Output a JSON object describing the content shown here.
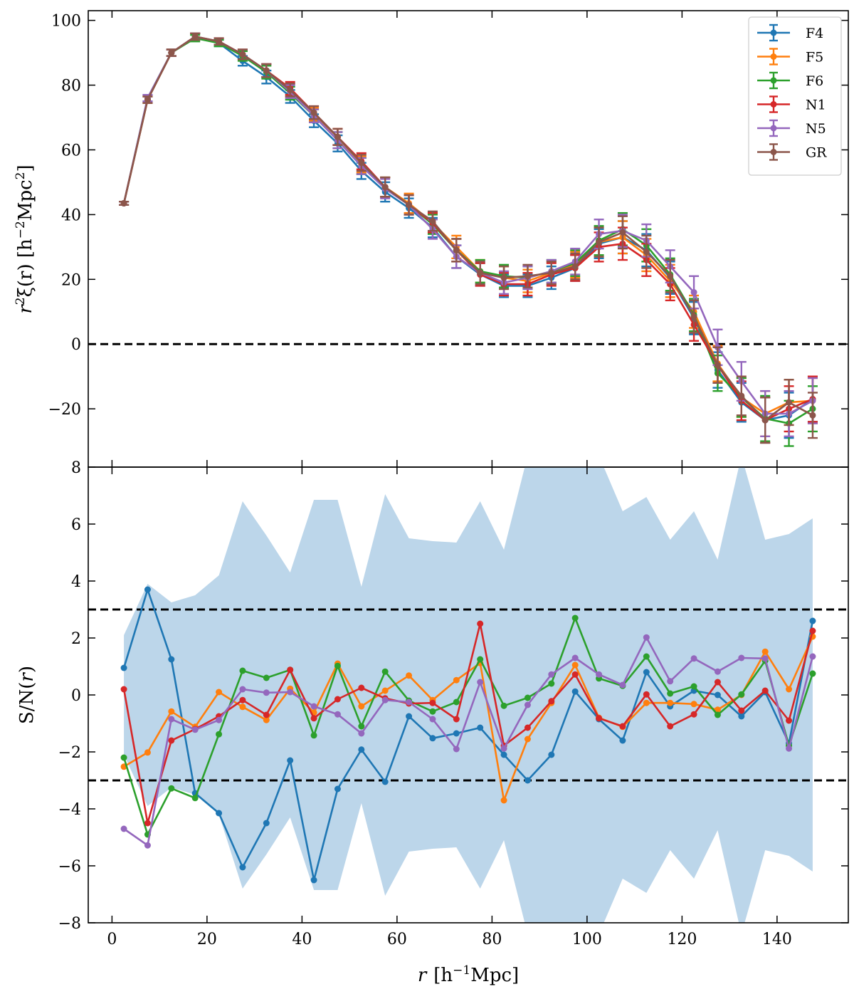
{
  "chart_data": [
    {
      "type": "line",
      "panel": "top",
      "xlabel_parts": [
        "r",
        "[h",
        "−1",
        "Mpc]"
      ],
      "ylabel_parts": [
        "r",
        "2",
        "ξ(r) [h",
        "−2",
        "Mpc",
        "2",
        "]"
      ],
      "xlim": [
        -5,
        155
      ],
      "ylim": [
        -38,
        103
      ],
      "yticks": [
        -20,
        0,
        20,
        40,
        60,
        80,
        100
      ],
      "ytick_labels": [
        "−20",
        "0",
        "20",
        "40",
        "60",
        "80",
        "100"
      ],
      "xticks": [
        0,
        20,
        40,
        60,
        80,
        100,
        120,
        140
      ],
      "zero_line": 0,
      "legend": "top-right",
      "x": [
        2.5,
        7.5,
        12.5,
        17.5,
        22.5,
        27.5,
        32.5,
        37.5,
        42.5,
        47.5,
        52.5,
        57.5,
        62.5,
        67.5,
        72.5,
        77.5,
        82.5,
        87.5,
        92.5,
        97.5,
        102.5,
        107.5,
        112.5,
        117.5,
        122.5,
        127.5,
        132.5,
        137.5,
        142.5,
        147.5
      ],
      "yerr": [
        0.5,
        1,
        1,
        1,
        1,
        1.5,
        2,
        2,
        2,
        2.5,
        2.5,
        3,
        3,
        3,
        3.5,
        3.5,
        3.5,
        3.5,
        3.5,
        4,
        4.5,
        5,
        5,
        5,
        5,
        5.5,
        6,
        7,
        7,
        7
      ],
      "series": [
        {
          "name": "F4",
          "color": "#1f77b4",
          "values": [
            43.5,
            76,
            90,
            95,
            93,
            87.5,
            82.5,
            76.5,
            69,
            62,
            53.5,
            47,
            42,
            36,
            27,
            21.5,
            18,
            18,
            20.5,
            23.5,
            31,
            33,
            29,
            20.5,
            8,
            -8,
            -18,
            -23.5,
            -22,
            -17
          ]
        },
        {
          "name": "F5",
          "color": "#ff7f0e",
          "values": [
            43.5,
            75.5,
            90,
            95,
            93.5,
            89.5,
            84.5,
            78.5,
            71,
            64,
            55.5,
            48.5,
            43.5,
            37.5,
            30,
            22.5,
            20.5,
            19.5,
            22,
            24.5,
            31.5,
            33,
            27.5,
            19.5,
            10,
            -6,
            -16.5,
            -21.5,
            -18,
            -17.5
          ]
        },
        {
          "name": "F6",
          "color": "#2ca02c",
          "values": [
            43.5,
            75.5,
            90,
            94.5,
            93,
            89,
            84,
            77.5,
            70.5,
            63,
            55,
            48.5,
            43,
            37,
            29,
            22.5,
            21,
            20.5,
            22.5,
            25,
            32,
            35.5,
            30.5,
            21.5,
            9,
            -9,
            -16.5,
            -23,
            -24.5,
            -20
          ]
        },
        {
          "name": "N1",
          "color": "#d62728",
          "values": [
            43.5,
            75.5,
            90,
            95,
            93.5,
            89.5,
            84.5,
            79,
            71.5,
            64,
            56.5,
            48.5,
            43,
            37.5,
            29,
            21.5,
            18.5,
            18.5,
            21.5,
            23.5,
            30,
            31,
            26,
            18.5,
            6,
            -6.5,
            -17.5,
            -23.5,
            -20,
            -17
          ]
        },
        {
          "name": "N5",
          "color": "#9467bd",
          "values": [
            43.5,
            76,
            90,
            95,
            93.5,
            89.5,
            84.5,
            78,
            70.5,
            63,
            55,
            48,
            43,
            35.5,
            27,
            22,
            19,
            20.5,
            22.5,
            25.5,
            34,
            35,
            32,
            24,
            16,
            -1,
            -11.5,
            -21.5,
            -21.5,
            -17.5
          ]
        },
        {
          "name": "GR",
          "color": "#8c564b",
          "values": [
            43.5,
            75.5,
            90,
            95,
            93.5,
            89.5,
            84.5,
            78.5,
            71.5,
            64,
            56,
            48.5,
            43,
            38,
            29,
            22,
            20.5,
            21,
            22,
            24,
            31.5,
            34.5,
            28.5,
            21,
            8.5,
            -6.5,
            -16,
            -23.5,
            -18,
            -22
          ]
        }
      ]
    },
    {
      "type": "line",
      "panel": "bottom",
      "ylabel": "S/N(r)",
      "ylabel_parts": [
        "S/N(",
        "r",
        ")"
      ],
      "xlabel_parts": [
        "r",
        "[h",
        "−1",
        "Mpc]"
      ],
      "xlim": [
        -5,
        155
      ],
      "ylim": [
        -8,
        8
      ],
      "yticks": [
        -8,
        -6,
        -4,
        -2,
        0,
        2,
        4,
        6,
        8
      ],
      "ytick_labels": [
        "−8",
        "−6",
        "−4",
        "−2",
        "0",
        "2",
        "4",
        "6",
        "8"
      ],
      "xticks": [
        0,
        20,
        40,
        60,
        80,
        100,
        120,
        140
      ],
      "xtick_labels": [
        "0",
        "20",
        "40",
        "60",
        "80",
        "100",
        "120",
        "140"
      ],
      "threshold_lines": [
        3,
        -3
      ],
      "band": {
        "color": "#bcd6ea",
        "x": [
          2.5,
          7.5,
          12.5,
          17.5,
          22.5,
          27.5,
          32.5,
          37.5,
          42.5,
          47.5,
          52.5,
          57.5,
          62.5,
          67.5,
          72.5,
          77.5,
          82.5,
          87.5,
          92.5,
          97.5,
          102.5,
          107.5,
          112.5,
          117.5,
          122.5,
          127.5,
          132.5,
          137.5,
          142.5,
          147.5
        ],
        "upper": [
          2.1,
          3.9,
          3.25,
          3.5,
          4.2,
          6.8,
          5.6,
          4.3,
          6.85,
          6.85,
          3.8,
          7.05,
          5.5,
          5.4,
          5.35,
          6.8,
          5.1,
          8.4,
          8.4,
          8.4,
          8.4,
          6.45,
          6.95,
          5.45,
          6.45,
          4.75,
          8.4,
          5.45,
          5.65,
          6.2
        ],
        "lower": [
          -2.1,
          -3.9,
          -3.25,
          -3.5,
          -4.2,
          -6.8,
          -5.6,
          -4.3,
          -6.85,
          -6.85,
          -3.8,
          -7.05,
          -5.5,
          -5.4,
          -5.35,
          -6.8,
          -5.1,
          -8.4,
          -8.4,
          -8.4,
          -8.4,
          -6.45,
          -6.95,
          -5.45,
          -6.45,
          -4.75,
          -8.4,
          -5.45,
          -5.65,
          -6.2
        ]
      },
      "x": [
        2.5,
        7.5,
        12.5,
        17.5,
        22.5,
        27.5,
        32.5,
        37.5,
        42.5,
        47.5,
        52.5,
        57.5,
        62.5,
        67.5,
        72.5,
        77.5,
        82.5,
        87.5,
        92.5,
        97.5,
        102.5,
        107.5,
        112.5,
        117.5,
        122.5,
        127.5,
        132.5,
        137.5,
        142.5,
        147.5
      ],
      "series": [
        {
          "color": "#1f77b4",
          "values": [
            0.95,
            3.7,
            1.25,
            -3.45,
            -4.15,
            -6.05,
            -4.5,
            -2.3,
            -6.5,
            -3.3,
            -1.92,
            -3.05,
            -0.75,
            -1.52,
            -1.35,
            -1.15,
            -2.1,
            -3.0,
            -2.1,
            0.12,
            -0.85,
            -1.6,
            0.8,
            -0.4,
            0.15,
            0.0,
            -0.75,
            0.1,
            -1.7,
            2.6
          ]
        },
        {
          "color": "#ff7f0e",
          "values": [
            -2.52,
            -2.02,
            -0.58,
            -1.12,
            0.1,
            -0.42,
            -0.88,
            0.22,
            -0.62,
            1.1,
            -0.4,
            0.15,
            0.68,
            -0.18,
            0.52,
            1.12,
            -3.7,
            -1.55,
            -0.28,
            1.05,
            -0.8,
            -1.12,
            -0.28,
            -0.28,
            -0.32,
            -0.52,
            0.0,
            1.52,
            0.2,
            2.05
          ]
        },
        {
          "color": "#2ca02c",
          "values": [
            -2.2,
            -4.9,
            -3.28,
            -3.62,
            -1.38,
            0.85,
            0.6,
            0.88,
            -1.42,
            1.02,
            -1.1,
            0.82,
            -0.2,
            -0.58,
            -0.25,
            1.25,
            -0.38,
            -0.1,
            0.4,
            2.7,
            0.58,
            0.32,
            1.35,
            0.05,
            0.3,
            -0.7,
            0.02,
            1.2,
            -1.78,
            0.75
          ]
        },
        {
          "color": "#d62728",
          "values": [
            0.2,
            -4.5,
            -1.6,
            -1.2,
            -0.75,
            -0.18,
            -0.7,
            0.88,
            -0.82,
            -0.15,
            0.25,
            -0.12,
            -0.3,
            -0.28,
            -0.85,
            2.5,
            -1.78,
            -1.15,
            -0.22,
            0.72,
            -0.82,
            -1.1,
            0.02,
            -1.1,
            -0.68,
            0.45,
            -0.55,
            0.15,
            -0.9,
            2.25
          ]
        },
        {
          "color": "#9467bd",
          "values": [
            -4.7,
            -5.28,
            -0.85,
            -1.22,
            -0.88,
            0.2,
            0.08,
            0.1,
            -0.4,
            -0.68,
            -1.35,
            -0.18,
            -0.25,
            -0.85,
            -1.9,
            0.45,
            -1.88,
            -0.35,
            0.72,
            1.3,
            0.72,
            0.35,
            2.02,
            0.48,
            1.28,
            0.82,
            1.3,
            1.28,
            -1.88,
            1.35
          ]
        }
      ]
    }
  ]
}
